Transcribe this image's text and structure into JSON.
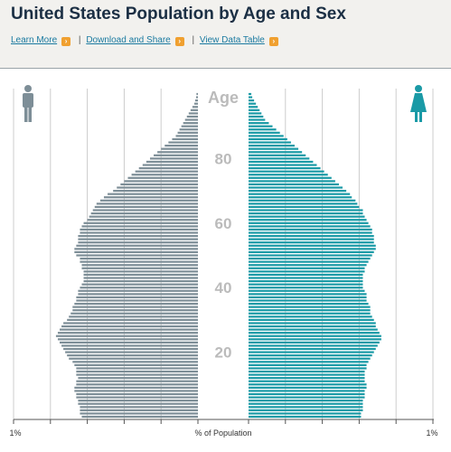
{
  "header": {
    "title": "United States Population by Age and Sex",
    "links": [
      {
        "label": "Learn More"
      },
      {
        "label": "Download and Share"
      },
      {
        "label": "View Data Table"
      }
    ],
    "separator": "|"
  },
  "colors": {
    "male": "#7d8e97",
    "female": "#1a9aa6",
    "grid": "#cccccc",
    "axis_label": "#bbbbbb",
    "link": "#1a7aa0",
    "link_arrow": "#f0a030"
  },
  "icons": {
    "male": "male-person-icon",
    "female": "female-person-icon"
  },
  "chart_data": {
    "type": "bar",
    "orientation": "horizontal-population-pyramid",
    "age_label": "Age",
    "xlabel": "% of Population",
    "x_tick_left": "1%",
    "x_tick_right": "1%",
    "xlim": [
      0,
      1.0
    ],
    "age_ticks": [
      20,
      40,
      60,
      80
    ],
    "age_range": [
      0,
      100
    ],
    "series": [
      {
        "sex": "male",
        "ages": [
          0,
          1,
          2,
          3,
          4,
          5,
          6,
          7,
          8,
          9,
          10,
          11,
          12,
          13,
          14,
          15,
          16,
          17,
          18,
          19,
          20,
          21,
          22,
          23,
          24,
          25,
          26,
          27,
          28,
          29,
          30,
          31,
          32,
          33,
          34,
          35,
          36,
          37,
          38,
          39,
          40,
          41,
          42,
          43,
          44,
          45,
          46,
          47,
          48,
          49,
          50,
          51,
          52,
          53,
          54,
          55,
          56,
          57,
          58,
          59,
          60,
          61,
          62,
          63,
          64,
          65,
          66,
          67,
          68,
          69,
          70,
          71,
          72,
          73,
          74,
          75,
          76,
          77,
          78,
          79,
          80,
          81,
          82,
          83,
          84,
          85,
          86,
          87,
          88,
          89,
          90,
          91,
          92,
          93,
          94,
          95,
          96,
          97,
          98,
          99,
          100
        ],
        "values": [
          0.63,
          0.64,
          0.64,
          0.64,
          0.65,
          0.65,
          0.66,
          0.66,
          0.67,
          0.67,
          0.66,
          0.66,
          0.65,
          0.66,
          0.66,
          0.66,
          0.67,
          0.68,
          0.7,
          0.71,
          0.72,
          0.73,
          0.74,
          0.75,
          0.76,
          0.77,
          0.76,
          0.75,
          0.74,
          0.73,
          0.71,
          0.7,
          0.69,
          0.68,
          0.68,
          0.67,
          0.66,
          0.66,
          0.65,
          0.65,
          0.64,
          0.63,
          0.62,
          0.62,
          0.62,
          0.62,
          0.63,
          0.63,
          0.64,
          0.64,
          0.66,
          0.67,
          0.67,
          0.66,
          0.65,
          0.65,
          0.65,
          0.64,
          0.64,
          0.63,
          0.62,
          0.6,
          0.59,
          0.58,
          0.57,
          0.56,
          0.55,
          0.53,
          0.51,
          0.49,
          0.46,
          0.44,
          0.42,
          0.4,
          0.38,
          0.36,
          0.34,
          0.32,
          0.3,
          0.28,
          0.26,
          0.24,
          0.22,
          0.2,
          0.18,
          0.16,
          0.14,
          0.12,
          0.11,
          0.1,
          0.09,
          0.08,
          0.07,
          0.06,
          0.05,
          0.04,
          0.03,
          0.02,
          0.015,
          0.01,
          0.008
        ]
      },
      {
        "sex": "female",
        "ages": [
          0,
          1,
          2,
          3,
          4,
          5,
          6,
          7,
          8,
          9,
          10,
          11,
          12,
          13,
          14,
          15,
          16,
          17,
          18,
          19,
          20,
          21,
          22,
          23,
          24,
          25,
          26,
          27,
          28,
          29,
          30,
          31,
          32,
          33,
          34,
          35,
          36,
          37,
          38,
          39,
          40,
          41,
          42,
          43,
          44,
          45,
          46,
          47,
          48,
          49,
          50,
          51,
          52,
          53,
          54,
          55,
          56,
          57,
          58,
          59,
          60,
          61,
          62,
          63,
          64,
          65,
          66,
          67,
          68,
          69,
          70,
          71,
          72,
          73,
          74,
          75,
          76,
          77,
          78,
          79,
          80,
          81,
          82,
          83,
          84,
          85,
          86,
          87,
          88,
          89,
          90,
          91,
          92,
          93,
          94,
          95,
          96,
          97,
          98,
          99,
          100
        ],
        "values": [
          0.61,
          0.61,
          0.62,
          0.62,
          0.62,
          0.62,
          0.63,
          0.63,
          0.63,
          0.64,
          0.64,
          0.63,
          0.63,
          0.63,
          0.63,
          0.64,
          0.64,
          0.65,
          0.66,
          0.67,
          0.68,
          0.69,
          0.7,
          0.71,
          0.72,
          0.72,
          0.71,
          0.7,
          0.69,
          0.69,
          0.68,
          0.67,
          0.66,
          0.66,
          0.66,
          0.65,
          0.64,
          0.64,
          0.64,
          0.63,
          0.62,
          0.62,
          0.62,
          0.62,
          0.62,
          0.63,
          0.63,
          0.64,
          0.65,
          0.66,
          0.67,
          0.68,
          0.69,
          0.69,
          0.68,
          0.68,
          0.68,
          0.67,
          0.67,
          0.66,
          0.65,
          0.64,
          0.63,
          0.62,
          0.62,
          0.6,
          0.59,
          0.58,
          0.56,
          0.55,
          0.53,
          0.51,
          0.49,
          0.47,
          0.45,
          0.43,
          0.41,
          0.39,
          0.37,
          0.35,
          0.33,
          0.31,
          0.29,
          0.27,
          0.25,
          0.23,
          0.21,
          0.19,
          0.17,
          0.15,
          0.13,
          0.11,
          0.09,
          0.08,
          0.07,
          0.06,
          0.05,
          0.04,
          0.03,
          0.02,
          0.015
        ]
      }
    ]
  }
}
